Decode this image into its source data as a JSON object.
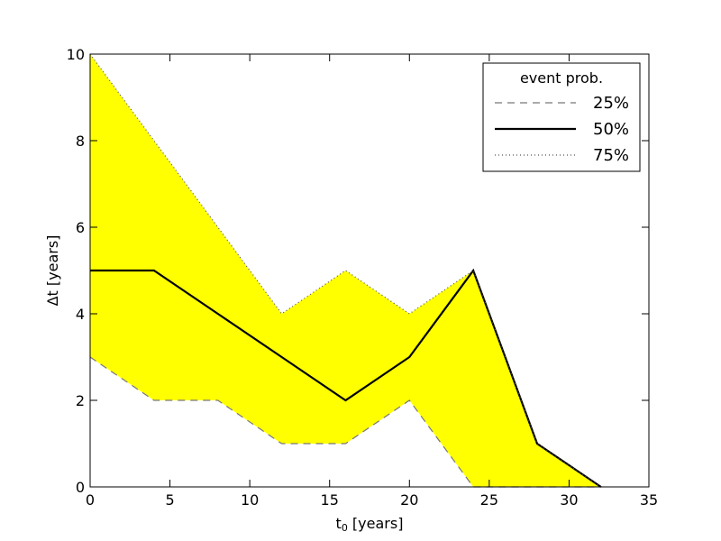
{
  "chart_data": {
    "type": "area",
    "xlabel_main": "t",
    "xlabel_sub": "0",
    "xlabel_unit": " [years]",
    "ylabel": "Δt [years]",
    "xlim": [
      0,
      35
    ],
    "ylim": [
      0,
      10
    ],
    "xticks": [
      0,
      5,
      10,
      15,
      20,
      25,
      30,
      35
    ],
    "yticks": [
      0,
      2,
      4,
      6,
      8,
      10
    ],
    "x": [
      0,
      4,
      8,
      12,
      16,
      20,
      24,
      28,
      32
    ],
    "series": [
      {
        "name": "25%",
        "style": "dashed",
        "color": "#777777",
        "values": [
          3,
          2,
          2,
          1,
          1,
          2,
          0,
          0,
          0
        ]
      },
      {
        "name": "50%",
        "style": "solid",
        "color": "#000000",
        "values": [
          5,
          5,
          4,
          3,
          2,
          3,
          5,
          1,
          0
        ]
      },
      {
        "name": "75%",
        "style": "dotted",
        "color": "#555555",
        "values": [
          10,
          8,
          6,
          4,
          5,
          4,
          5,
          1,
          0
        ]
      }
    ],
    "fill": {
      "between": [
        "25%",
        "75%"
      ],
      "color": "#ffff00"
    },
    "legend": {
      "title": "event prob.",
      "placement": "top-right"
    },
    "grid": false
  }
}
